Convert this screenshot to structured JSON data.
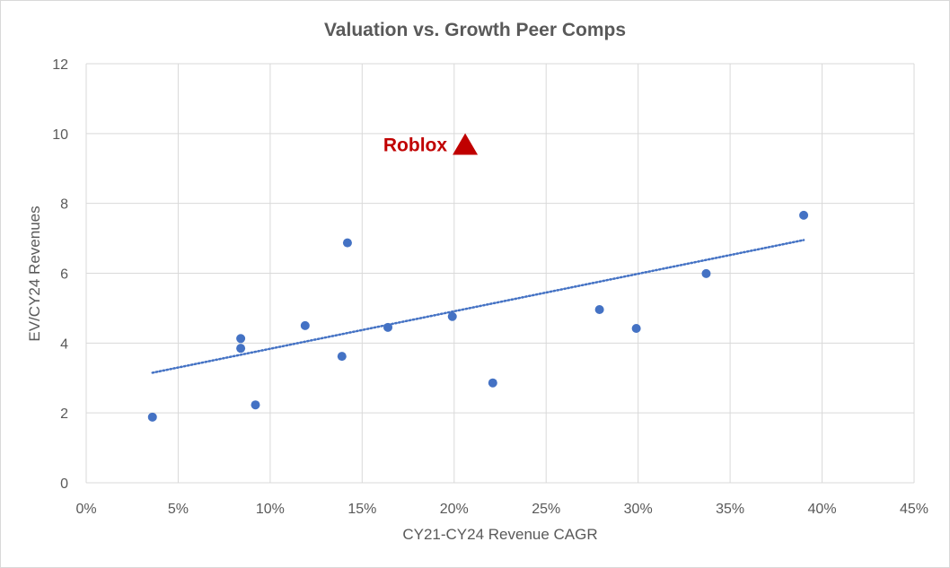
{
  "chart_data": {
    "type": "scatter",
    "title": "Valuation vs. Growth Peer Comps",
    "xlabel": "CY21-CY24 Revenue CAGR",
    "ylabel": "EV/CY24 Revenues",
    "xlim": [
      0,
      0.45
    ],
    "ylim": [
      0,
      12
    ],
    "x_ticks": [
      0,
      0.05,
      0.1,
      0.15,
      0.2,
      0.25,
      0.3,
      0.35,
      0.4,
      0.45
    ],
    "x_tick_labels": [
      "0%",
      "5%",
      "10%",
      "15%",
      "20%",
      "25%",
      "30%",
      "35%",
      "40%",
      "45%"
    ],
    "y_ticks": [
      0,
      2,
      4,
      6,
      8,
      10,
      12
    ],
    "y_tick_labels": [
      "0",
      "2",
      "4",
      "6",
      "8",
      "10",
      "12"
    ],
    "grid": true,
    "series": [
      {
        "points": [
          {
            "x": 0.036,
            "y": 1.88
          },
          {
            "x": 0.084,
            "y": 4.13
          },
          {
            "x": 0.084,
            "y": 3.85
          },
          {
            "x": 0.092,
            "y": 2.23
          },
          {
            "x": 0.119,
            "y": 4.5
          },
          {
            "x": 0.139,
            "y": 3.62
          },
          {
            "x": 0.142,
            "y": 6.87
          },
          {
            "x": 0.164,
            "y": 4.45
          },
          {
            "x": 0.199,
            "y": 4.76
          },
          {
            "x": 0.221,
            "y": 2.86
          },
          {
            "x": 0.279,
            "y": 4.96
          },
          {
            "x": 0.299,
            "y": 4.42
          },
          {
            "x": 0.337,
            "y": 5.99
          },
          {
            "x": 0.39,
            "y": 7.66
          }
        ],
        "color": "#4472c4"
      }
    ],
    "trendline": {
      "style": "dotted",
      "color": "#4472c4",
      "start": {
        "x": 0.036,
        "y": 3.15
      },
      "end": {
        "x": 0.39,
        "y": 6.95
      }
    },
    "annotations": [
      {
        "label": "Roblox",
        "x": 0.206,
        "y": 9.7,
        "marker": "triangle",
        "color": "#c00000"
      }
    ]
  }
}
